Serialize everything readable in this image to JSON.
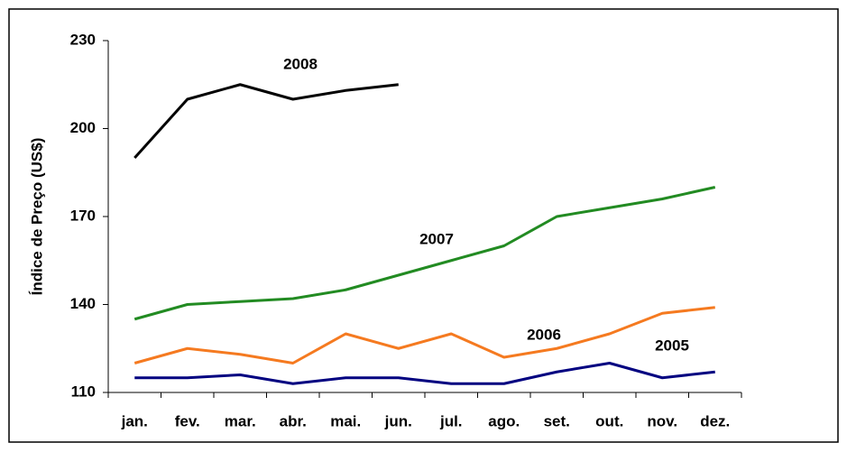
{
  "chart_data": {
    "type": "line",
    "y_label": "Índice de Preço (US$)",
    "categories": [
      "jan.",
      "fev.",
      "mar.",
      "abr.",
      "mai.",
      "jun.",
      "jul.",
      "ago.",
      "set.",
      "out.",
      "nov.",
      "dez."
    ],
    "series": [
      {
        "name": "2008",
        "color": "#000000",
        "values": [
          190,
          210,
          215,
          210,
          213,
          215,
          null,
          null,
          null,
          null,
          null,
          null
        ]
      },
      {
        "name": "2007",
        "color": "#228b22",
        "values": [
          135,
          140,
          141,
          142,
          145,
          150,
          155,
          160,
          170,
          173,
          176,
          180
        ]
      },
      {
        "name": "2006",
        "color": "#f57a20",
        "values": [
          120,
          125,
          123,
          120,
          130,
          125,
          130,
          122,
          125,
          130,
          137,
          139
        ]
      },
      {
        "name": "2005",
        "color": "#000080",
        "values": [
          115,
          115,
          116,
          113,
          115,
          115,
          113,
          113,
          117,
          120,
          115,
          117
        ]
      }
    ],
    "ylim": [
      110,
      230
    ],
    "yticks": [
      110,
      140,
      170,
      200,
      230
    ],
    "grid": false
  }
}
